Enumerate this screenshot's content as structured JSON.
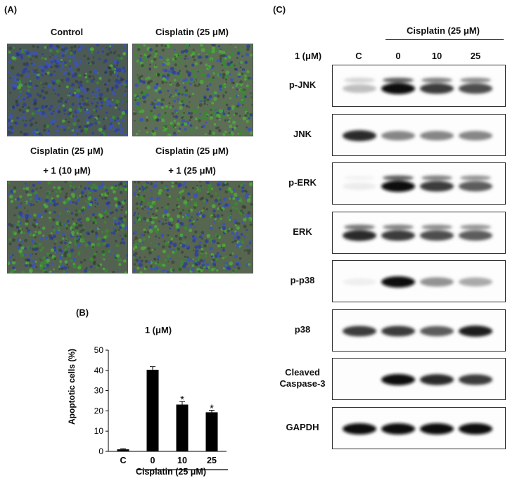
{
  "panelA": {
    "label": "(A)",
    "images": [
      {
        "caption1": "Control",
        "caption2": "",
        "tone": "control"
      },
      {
        "caption1": "Cisplatin (25 μM)",
        "caption2": "",
        "tone": "cis"
      },
      {
        "caption1": "Cisplatin (25 μM)",
        "caption2": "+ 1 (10 μM)",
        "tone": "c10"
      },
      {
        "caption1": "Cisplatin (25 μM)",
        "caption2": "+ 1 (25 μM)",
        "tone": "c25"
      }
    ]
  },
  "panelB": {
    "label": "(B)",
    "treatment_title": "1 (μM)",
    "group_label": "Cisplatin (25 μM)"
  },
  "chart_data": {
    "type": "bar",
    "categories": [
      "C",
      "0",
      "10",
      "25"
    ],
    "values": [
      1,
      40.3,
      23.1,
      19.3
    ],
    "errors": [
      0.3,
      1.5,
      1.5,
      1.0
    ],
    "significance": [
      "",
      "",
      "*",
      "*"
    ],
    "title": "1 (μM)",
    "xlabel": "Cisplatin (25 μM)",
    "ylabel": "Apoptotic cells (%)",
    "ylim": [
      0,
      50
    ],
    "yticks": [
      0,
      10,
      20,
      30,
      40,
      50
    ],
    "bar_color": "#000000",
    "grid": false
  },
  "panelC": {
    "label": "(C)",
    "group_label": "Cisplatin (25 μM)",
    "treatment_label": "1 (μM)",
    "lanes": [
      "C",
      "0",
      "10",
      "25"
    ],
    "blots": [
      {
        "label": "p-JNK",
        "bands": [
          0.35,
          1.0,
          0.85,
          0.8
        ],
        "double": true
      },
      {
        "label": "JNK",
        "bands": [
          0.9,
          0.6,
          0.6,
          0.6
        ],
        "double": false
      },
      {
        "label": "p-ERK",
        "bands": [
          0.05,
          1.0,
          0.85,
          0.75
        ],
        "double": true
      },
      {
        "label": "ERK",
        "bands": [
          0.9,
          0.85,
          0.8,
          0.75
        ],
        "double": true
      },
      {
        "label": "p-p38",
        "bands": [
          0.03,
          1.0,
          0.55,
          0.45
        ],
        "double": false
      },
      {
        "label": "p38",
        "bands": [
          0.85,
          0.85,
          0.75,
          0.95
        ],
        "double": false
      },
      {
        "label": "Cleaved Caspase-3",
        "bands": [
          0.0,
          1.0,
          0.9,
          0.85
        ],
        "double": false
      },
      {
        "label": "GAPDH",
        "bands": [
          1.0,
          1.0,
          1.0,
          1.0
        ],
        "double": false
      }
    ]
  }
}
